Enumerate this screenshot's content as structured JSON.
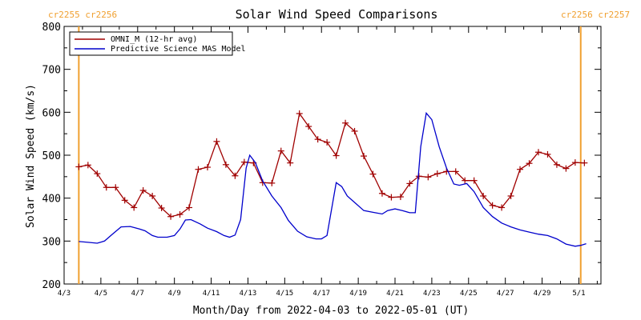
{
  "chart_data": {
    "type": "line",
    "title": "Solar Wind Speed Comparisons",
    "xlabel": "Month/Day from 2022-04-03 to 2022-05-01 (UT)",
    "ylabel": "Solar Wind Speed (km/s)",
    "xlim_day": [
      3.0,
      32.2
    ],
    "ylim": [
      200,
      800
    ],
    "yticks": [
      "200",
      "300",
      "400",
      "500",
      "600",
      "700",
      "800"
    ],
    "yticks_values": [
      200,
      300,
      400,
      500,
      600,
      700,
      800
    ],
    "xticks": [
      {
        "label": "4/3",
        "day": 3
      },
      {
        "label": "4/5",
        "day": 5
      },
      {
        "label": "4/7",
        "day": 7
      },
      {
        "label": "4/9",
        "day": 9
      },
      {
        "label": "4/11",
        "day": 11
      },
      {
        "label": "4/13",
        "day": 13
      },
      {
        "label": "4/15",
        "day": 15
      },
      {
        "label": "4/17",
        "day": 17
      },
      {
        "label": "4/19",
        "day": 19
      },
      {
        "label": "4/21",
        "day": 21
      },
      {
        "label": "4/23",
        "day": 23
      },
      {
        "label": "4/25",
        "day": 25
      },
      {
        "label": "4/27",
        "day": 27
      },
      {
        "label": "4/29",
        "day": 29
      },
      {
        "label": "5/1",
        "day": 31
      }
    ],
    "legend_position": "top-left",
    "carrington_markers": [
      {
        "day": 3.8,
        "label": "cr2255 cr2256",
        "color": "#f0a030"
      },
      {
        "day": 31.1,
        "label": "cr2256 cr2257",
        "color": "#f0a030"
      }
    ],
    "series": [
      {
        "name": "OMNI_M (12-hr avg)",
        "color": "#a00000",
        "marker": "plus",
        "points": [
          [
            3.8,
            473
          ],
          [
            4.3,
            477
          ],
          [
            4.8,
            457
          ],
          [
            5.3,
            425
          ],
          [
            5.8,
            425
          ],
          [
            6.3,
            395
          ],
          [
            6.8,
            378
          ],
          [
            7.3,
            418
          ],
          [
            7.8,
            405
          ],
          [
            8.3,
            377
          ],
          [
            8.8,
            357
          ],
          [
            9.3,
            362
          ],
          [
            9.8,
            378
          ],
          [
            10.3,
            467
          ],
          [
            10.8,
            472
          ],
          [
            11.3,
            532
          ],
          [
            11.8,
            478
          ],
          [
            12.3,
            452
          ],
          [
            12.8,
            484
          ],
          [
            13.3,
            482
          ],
          [
            13.8,
            436
          ],
          [
            14.3,
            435
          ],
          [
            14.8,
            510
          ],
          [
            15.3,
            482
          ],
          [
            15.8,
            597
          ],
          [
            16.3,
            567
          ],
          [
            16.8,
            537
          ],
          [
            17.3,
            530
          ],
          [
            17.8,
            499
          ],
          [
            18.3,
            575
          ],
          [
            18.8,
            556
          ],
          [
            19.3,
            498
          ],
          [
            19.8,
            456
          ],
          [
            20.3,
            411
          ],
          [
            20.8,
            402
          ],
          [
            21.3,
            403
          ],
          [
            21.8,
            434
          ],
          [
            22.3,
            451
          ],
          [
            22.8,
            449
          ],
          [
            23.3,
            457
          ],
          [
            23.8,
            462
          ],
          [
            24.3,
            462
          ],
          [
            24.8,
            441
          ],
          [
            25.3,
            441
          ],
          [
            25.8,
            405
          ],
          [
            26.3,
            383
          ],
          [
            26.8,
            378
          ],
          [
            27.3,
            405
          ],
          [
            27.8,
            467
          ],
          [
            28.3,
            481
          ],
          [
            28.8,
            507
          ],
          [
            29.3,
            502
          ],
          [
            29.8,
            478
          ],
          [
            30.3,
            469
          ],
          [
            30.8,
            483
          ],
          [
            31.3,
            482
          ]
        ]
      },
      {
        "name": "Predictive Science MAS Model",
        "color": "#0000cc",
        "marker": "none",
        "points": [
          [
            3.8,
            299
          ],
          [
            4.3,
            297
          ],
          [
            4.8,
            295
          ],
          [
            5.2,
            300
          ],
          [
            5.6,
            315
          ],
          [
            6.1,
            333
          ],
          [
            6.6,
            334
          ],
          [
            7.1,
            328
          ],
          [
            7.4,
            324
          ],
          [
            7.8,
            313
          ],
          [
            8.1,
            309
          ],
          [
            8.6,
            309
          ],
          [
            9.0,
            313
          ],
          [
            9.3,
            328
          ],
          [
            9.6,
            349
          ],
          [
            9.9,
            350
          ],
          [
            10.4,
            340
          ],
          [
            10.8,
            330
          ],
          [
            11.3,
            322
          ],
          [
            11.7,
            313
          ],
          [
            12.0,
            309
          ],
          [
            12.3,
            314
          ],
          [
            12.6,
            350
          ],
          [
            12.9,
            470
          ],
          [
            13.1,
            500
          ],
          [
            13.4,
            483
          ],
          [
            13.8,
            440
          ],
          [
            14.3,
            405
          ],
          [
            14.8,
            378
          ],
          [
            15.2,
            348
          ],
          [
            15.7,
            323
          ],
          [
            16.2,
            310
          ],
          [
            16.7,
            305
          ],
          [
            17.0,
            305
          ],
          [
            17.3,
            313
          ],
          [
            17.8,
            436
          ],
          [
            18.1,
            427
          ],
          [
            18.4,
            405
          ],
          [
            18.8,
            390
          ],
          [
            19.3,
            371
          ],
          [
            19.8,
            367
          ],
          [
            20.3,
            363
          ],
          [
            20.6,
            371
          ],
          [
            21.0,
            375
          ],
          [
            21.4,
            371
          ],
          [
            21.8,
            366
          ],
          [
            22.1,
            366
          ],
          [
            22.4,
            520
          ],
          [
            22.7,
            598
          ],
          [
            23.0,
            583
          ],
          [
            23.4,
            520
          ],
          [
            23.8,
            470
          ],
          [
            24.2,
            433
          ],
          [
            24.5,
            430
          ],
          [
            24.9,
            434
          ],
          [
            25.3,
            415
          ],
          [
            25.8,
            378
          ],
          [
            26.3,
            357
          ],
          [
            26.8,
            342
          ],
          [
            27.3,
            333
          ],
          [
            27.8,
            326
          ],
          [
            28.3,
            321
          ],
          [
            28.8,
            316
          ],
          [
            29.3,
            313
          ],
          [
            29.8,
            305
          ],
          [
            30.3,
            293
          ],
          [
            30.8,
            288
          ],
          [
            31.1,
            290
          ],
          [
            31.4,
            294
          ]
        ]
      }
    ]
  }
}
